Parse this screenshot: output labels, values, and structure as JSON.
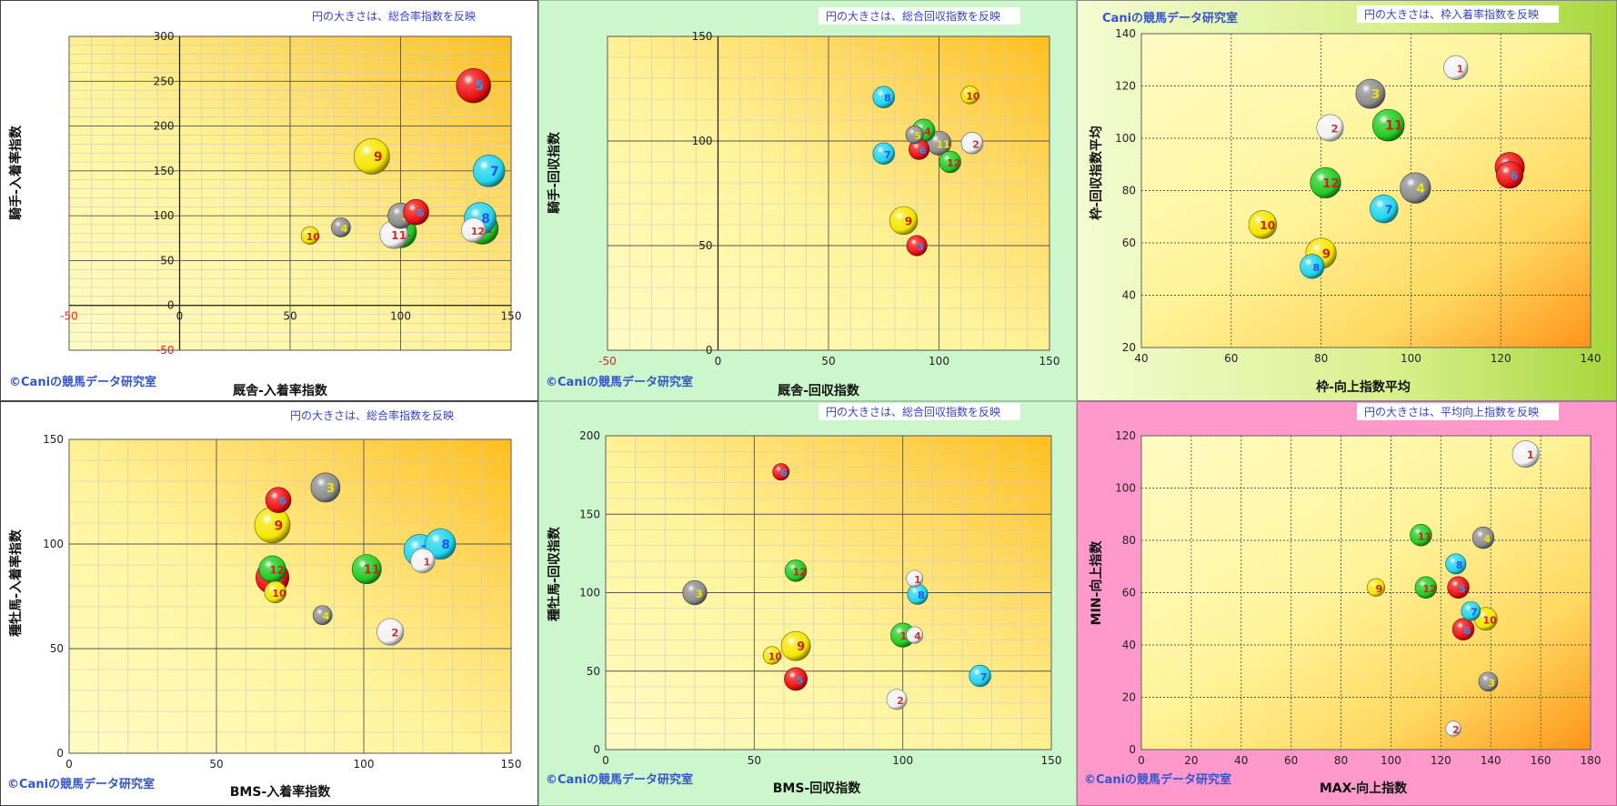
{
  "colors": {
    "red": "#ee1111",
    "white": "#f2f2f2",
    "gray": "#8c8c8c",
    "yellow": "#f5e600",
    "green": "#22cc22",
    "cyan": "#22d4ee"
  },
  "chart_data": [
    {
      "type": "scatter",
      "note": "円の大きさは、総合率指数を反映",
      "watermark": "©Caniの競馬データ研究室",
      "xlabel": "厩舎-入着率指数",
      "ylabel": "騎手-入着率指数",
      "xlim": [
        -50,
        150
      ],
      "ylim": [
        -50,
        300
      ],
      "xticks": [
        -50,
        0,
        50,
        100,
        150
      ],
      "yticks": [
        -50,
        0,
        50,
        100,
        150,
        200,
        250,
        300
      ],
      "gridlines": "dashed",
      "points": [
        {
          "label": "1",
          "x": 100,
          "y": 82,
          "size": 1.25,
          "color": "green"
        },
        {
          "label": "2",
          "x": 137,
          "y": 86,
          "size": 1.25,
          "color": "green"
        },
        {
          "label": "3",
          "x": 100,
          "y": 100,
          "size": 1.0,
          "color": "gray"
        },
        {
          "label": "4",
          "x": 73,
          "y": 87,
          "size": 0.75,
          "color": "gray"
        },
        {
          "label": "5",
          "x": 133,
          "y": 245,
          "size": 1.35,
          "color": "red"
        },
        {
          "label": "6",
          "x": 107,
          "y": 104,
          "size": 1.0,
          "color": "red"
        },
        {
          "label": "7",
          "x": 140,
          "y": 150,
          "size": 1.25,
          "color": "cyan"
        },
        {
          "label": "8",
          "x": 136,
          "y": 97,
          "size": 1.25,
          "color": "cyan"
        },
        {
          "label": "9",
          "x": 87,
          "y": 166,
          "size": 1.4,
          "color": "yellow"
        },
        {
          "label": "10",
          "x": 59,
          "y": 78,
          "size": 0.7,
          "color": "yellow"
        },
        {
          "label": "11",
          "x": 97,
          "y": 79,
          "size": 1.1,
          "color": "white"
        },
        {
          "label": "12",
          "x": 133,
          "y": 84,
          "size": 0.95,
          "color": "white"
        }
      ]
    },
    {
      "type": "scatter",
      "note": "円の大きさは、総合回収指数を反映",
      "watermark": "©Caniの競馬データ研究室",
      "xlabel": "厩舎-回収指数",
      "ylabel": "騎手-回収指数",
      "xlim": [
        -50,
        150
      ],
      "ylim": [
        0,
        150
      ],
      "xticks": [
        -50,
        0,
        50,
        100,
        150
      ],
      "yticks": [
        0,
        50,
        100,
        150
      ],
      "gridlines": "dashed",
      "points": [
        {
          "label": "1",
          "x": 115,
          "y": 99,
          "size": 0.85,
          "color": "white"
        },
        {
          "label": "2",
          "x": 115,
          "y": 99,
          "size": 0.85,
          "color": "white"
        },
        {
          "label": "3",
          "x": 90,
          "y": 50,
          "size": 0.8,
          "color": "red"
        },
        {
          "label": "4",
          "x": 93,
          "y": 105,
          "size": 0.9,
          "color": "green"
        },
        {
          "label": "5",
          "x": 89,
          "y": 103,
          "size": 0.7,
          "color": "gray"
        },
        {
          "label": "6",
          "x": 91,
          "y": 96,
          "size": 0.8,
          "color": "red"
        },
        {
          "label": "7",
          "x": 75,
          "y": 94,
          "size": 0.85,
          "color": "cyan"
        },
        {
          "label": "8",
          "x": 75,
          "y": 121,
          "size": 0.85,
          "color": "cyan"
        },
        {
          "label": "9",
          "x": 84,
          "y": 62,
          "size": 1.1,
          "color": "yellow"
        },
        {
          "label": "10",
          "x": 114,
          "y": 122,
          "size": 0.7,
          "color": "yellow"
        },
        {
          "label": "11",
          "x": 100,
          "y": 99,
          "size": 0.95,
          "color": "gray"
        },
        {
          "label": "12",
          "x": 105,
          "y": 90,
          "size": 0.85,
          "color": "green"
        }
      ]
    },
    {
      "type": "scatter",
      "title": "Caniの競馬データ研究室",
      "note": "円の大きさは、枠入着率指数を反映",
      "xlabel": "枠-向上指数平均",
      "ylabel": "枠-回収指数平均",
      "xlim": [
        40,
        140
      ],
      "ylim": [
        20,
        140
      ],
      "xticks": [
        40,
        60,
        80,
        100,
        120,
        140
      ],
      "yticks": [
        20,
        40,
        60,
        80,
        100,
        120,
        140
      ],
      "gridlines": "dotted",
      "points": [
        {
          "label": "1",
          "x": 110,
          "y": 127,
          "size": 0.95,
          "color": "white"
        },
        {
          "label": "2",
          "x": 82,
          "y": 104,
          "size": 1.05,
          "color": "white"
        },
        {
          "label": "3",
          "x": 91,
          "y": 117,
          "size": 1.15,
          "color": "gray"
        },
        {
          "label": "4",
          "x": 101,
          "y": 81,
          "size": 1.2,
          "color": "gray"
        },
        {
          "label": "5",
          "x": 122,
          "y": 89,
          "size": 1.15,
          "color": "red"
        },
        {
          "label": "6",
          "x": 122,
          "y": 86,
          "size": 1.05,
          "color": "red"
        },
        {
          "label": "7",
          "x": 94,
          "y": 73,
          "size": 1.1,
          "color": "cyan"
        },
        {
          "label": "8",
          "x": 78,
          "y": 51,
          "size": 0.95,
          "color": "cyan"
        },
        {
          "label": "9",
          "x": 80,
          "y": 56,
          "size": 1.2,
          "color": "yellow"
        },
        {
          "label": "10",
          "x": 67,
          "y": 67,
          "size": 1.1,
          "color": "yellow"
        },
        {
          "label": "11",
          "x": 95,
          "y": 105,
          "size": 1.25,
          "color": "green"
        },
        {
          "label": "12",
          "x": 81,
          "y": 83,
          "size": 1.2,
          "color": "green"
        }
      ]
    },
    {
      "type": "scatter",
      "note": "円の大きさは、総合率指数を反映",
      "watermark": "©Caniの競馬データ研究室",
      "xlabel": "BMS-入着率指数",
      "ylabel": "種牡馬-入着率指数",
      "xlim": [
        0,
        150
      ],
      "ylim": [
        0,
        150
      ],
      "xticks": [
        0,
        50,
        100,
        150
      ],
      "yticks": [
        0,
        50,
        100,
        150
      ],
      "gridlines": "dashed",
      "points": [
        {
          "label": "1",
          "x": 120,
          "y": 92,
          "size": 0.95,
          "color": "white"
        },
        {
          "label": "2",
          "x": 109,
          "y": 58,
          "size": 1.05,
          "color": "white"
        },
        {
          "label": "3",
          "x": 87,
          "y": 127,
          "size": 1.15,
          "color": "gray"
        },
        {
          "label": "4",
          "x": 86,
          "y": 66,
          "size": 0.75,
          "color": "gray"
        },
        {
          "label": "5",
          "x": 69,
          "y": 84,
          "size": 1.3,
          "color": "red"
        },
        {
          "label": "6",
          "x": 71,
          "y": 121,
          "size": 1.0,
          "color": "red"
        },
        {
          "label": "7",
          "x": 119,
          "y": 97,
          "size": 1.25,
          "color": "cyan"
        },
        {
          "label": "8",
          "x": 126,
          "y": 100,
          "size": 1.2,
          "color": "cyan"
        },
        {
          "label": "9",
          "x": 69,
          "y": 109,
          "size": 1.4,
          "color": "yellow"
        },
        {
          "label": "10",
          "x": 70,
          "y": 77,
          "size": 0.85,
          "color": "yellow"
        },
        {
          "label": "11",
          "x": 101,
          "y": 88,
          "size": 1.15,
          "color": "green"
        },
        {
          "label": "12",
          "x": 69,
          "y": 88,
          "size": 1.05,
          "color": "green"
        }
      ]
    },
    {
      "type": "scatter",
      "note": "円の大きさは、総合回収指数を反映",
      "watermark": "©Caniの競馬データ研究室",
      "xlabel": "BMS-回収指数",
      "ylabel": "種牡馬-回収指数",
      "xlim": [
        0,
        150
      ],
      "ylim": [
        0,
        200
      ],
      "xticks": [
        0,
        50,
        100,
        150
      ],
      "yticks": [
        0,
        50,
        100,
        150,
        200
      ],
      "gridlines": "dashed",
      "points": [
        {
          "label": "1",
          "x": 104,
          "y": 109,
          "size": 0.65,
          "color": "white"
        },
        {
          "label": "2",
          "x": 98,
          "y": 32,
          "size": 0.8,
          "color": "white"
        },
        {
          "label": "3",
          "x": 30,
          "y": 100,
          "size": 0.95,
          "color": "gray"
        },
        {
          "label": "4",
          "x": 104,
          "y": 73,
          "size": 0.65,
          "color": "white"
        },
        {
          "label": "5",
          "x": 64,
          "y": 45,
          "size": 0.9,
          "color": "red"
        },
        {
          "label": "6",
          "x": 59,
          "y": 177,
          "size": 0.65,
          "color": "red"
        },
        {
          "label": "7",
          "x": 126,
          "y": 47,
          "size": 0.85,
          "color": "cyan"
        },
        {
          "label": "8",
          "x": 105,
          "y": 99,
          "size": 0.8,
          "color": "cyan"
        },
        {
          "label": "9",
          "x": 64,
          "y": 66,
          "size": 1.15,
          "color": "yellow"
        },
        {
          "label": "10",
          "x": 56,
          "y": 60,
          "size": 0.7,
          "color": "yellow"
        },
        {
          "label": "11",
          "x": 100,
          "y": 73,
          "size": 0.95,
          "color": "green"
        },
        {
          "label": "12",
          "x": 64,
          "y": 114,
          "size": 0.85,
          "color": "green"
        }
      ]
    },
    {
      "type": "scatter",
      "note": "円の大きさは、平均向上指数を反映",
      "watermark": "©Caniの競馬データ研究室",
      "xlabel": "MAX-向上指数",
      "ylabel": "MIN-向上指数",
      "xlim": [
        0,
        180
      ],
      "ylim": [
        0,
        120
      ],
      "xticks": [
        0,
        20,
        40,
        60,
        80,
        100,
        120,
        140,
        160,
        180
      ],
      "yticks": [
        0,
        20,
        40,
        60,
        80,
        100,
        120
      ],
      "gridlines": "dotted",
      "points": [
        {
          "label": "1",
          "x": 154,
          "y": 113,
          "size": 1.05,
          "color": "white"
        },
        {
          "label": "2",
          "x": 125,
          "y": 8,
          "size": 0.6,
          "color": "white"
        },
        {
          "label": "3",
          "x": 139,
          "y": 26,
          "size": 0.75,
          "color": "gray"
        },
        {
          "label": "4",
          "x": 137,
          "y": 81,
          "size": 0.85,
          "color": "gray"
        },
        {
          "label": "5",
          "x": 127,
          "y": 62,
          "size": 0.85,
          "color": "red"
        },
        {
          "label": "6",
          "x": 129,
          "y": 46,
          "size": 0.85,
          "color": "red"
        },
        {
          "label": "7",
          "x": 132,
          "y": 53,
          "size": 0.75,
          "color": "cyan"
        },
        {
          "label": "8",
          "x": 126,
          "y": 71,
          "size": 0.8,
          "color": "cyan"
        },
        {
          "label": "9",
          "x": 94,
          "y": 62,
          "size": 0.7,
          "color": "yellow"
        },
        {
          "label": "10",
          "x": 138,
          "y": 50,
          "size": 0.9,
          "color": "yellow"
        },
        {
          "label": "11",
          "x": 112,
          "y": 82,
          "size": 0.85,
          "color": "green"
        },
        {
          "label": "12",
          "x": 114,
          "y": 62,
          "size": 0.85,
          "color": "green"
        }
      ]
    }
  ]
}
